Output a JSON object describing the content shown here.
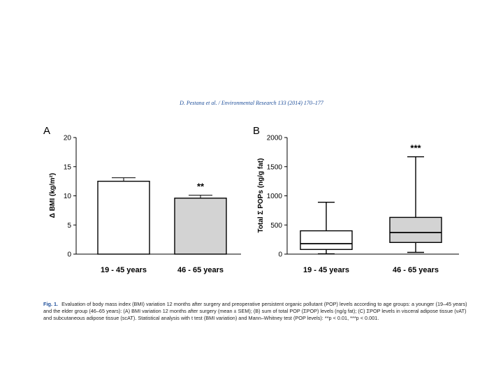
{
  "header": {
    "citation": "D. Pestana et al. / Environmental Research 133 (2014) 170–177"
  },
  "chart_data": [
    {
      "panel": "A",
      "type": "bar",
      "categories": [
        "19 - 45 years",
        "46 - 65 years"
      ],
      "values": [
        12.5,
        9.6
      ],
      "error": [
        0.6,
        0.5
      ],
      "significance": [
        "",
        "**"
      ],
      "colors": [
        "#ffffff",
        "#d3d3d3"
      ],
      "title": "",
      "xlabel": "",
      "ylabel": "Δ BMI (kg/m²)",
      "ylim": [
        0,
        20
      ],
      "yticks": [
        0,
        5,
        10,
        15,
        20
      ],
      "grid": false
    },
    {
      "panel": "B",
      "type": "box",
      "categories": [
        "19 - 45 years",
        "46 - 65 years"
      ],
      "boxes": [
        {
          "min": 5,
          "q1": 80,
          "median": 180,
          "q3": 400,
          "max": 890
        },
        {
          "min": 30,
          "q1": 200,
          "median": 370,
          "q3": 630,
          "max": 1670
        }
      ],
      "significance": [
        "",
        "***"
      ],
      "colors": [
        "#ffffff",
        "#d3d3d3"
      ],
      "title": "",
      "xlabel": "",
      "ylabel": "Total Σ POPs (ng/g fat)",
      "ylim": [
        0,
        2000
      ],
      "yticks": [
        0,
        500,
        1000,
        1500,
        2000
      ],
      "grid": false
    }
  ],
  "caption": {
    "label": "Fig. 1.",
    "text": "Evaluation of body mass index (BMI) variation 12 months after surgery and preoperative persistent organic pollutant (POP) levels according to age groups: a younger (19–45 years) and the elder group (46–65 years): (A) BMI variation 12 months after surgery (mean ± SEM); (B) sum of total POP (ΣPOP) levels (ng/g fat); (C) ΣPOP levels in visceral adipose tissue (vAT) and subcutaneous adipose tissue (scAT). Statistical analysis with t test (BMI variation) and Mann–Whitney test (POP levels): **p < 0.01, ***p < 0.001."
  }
}
